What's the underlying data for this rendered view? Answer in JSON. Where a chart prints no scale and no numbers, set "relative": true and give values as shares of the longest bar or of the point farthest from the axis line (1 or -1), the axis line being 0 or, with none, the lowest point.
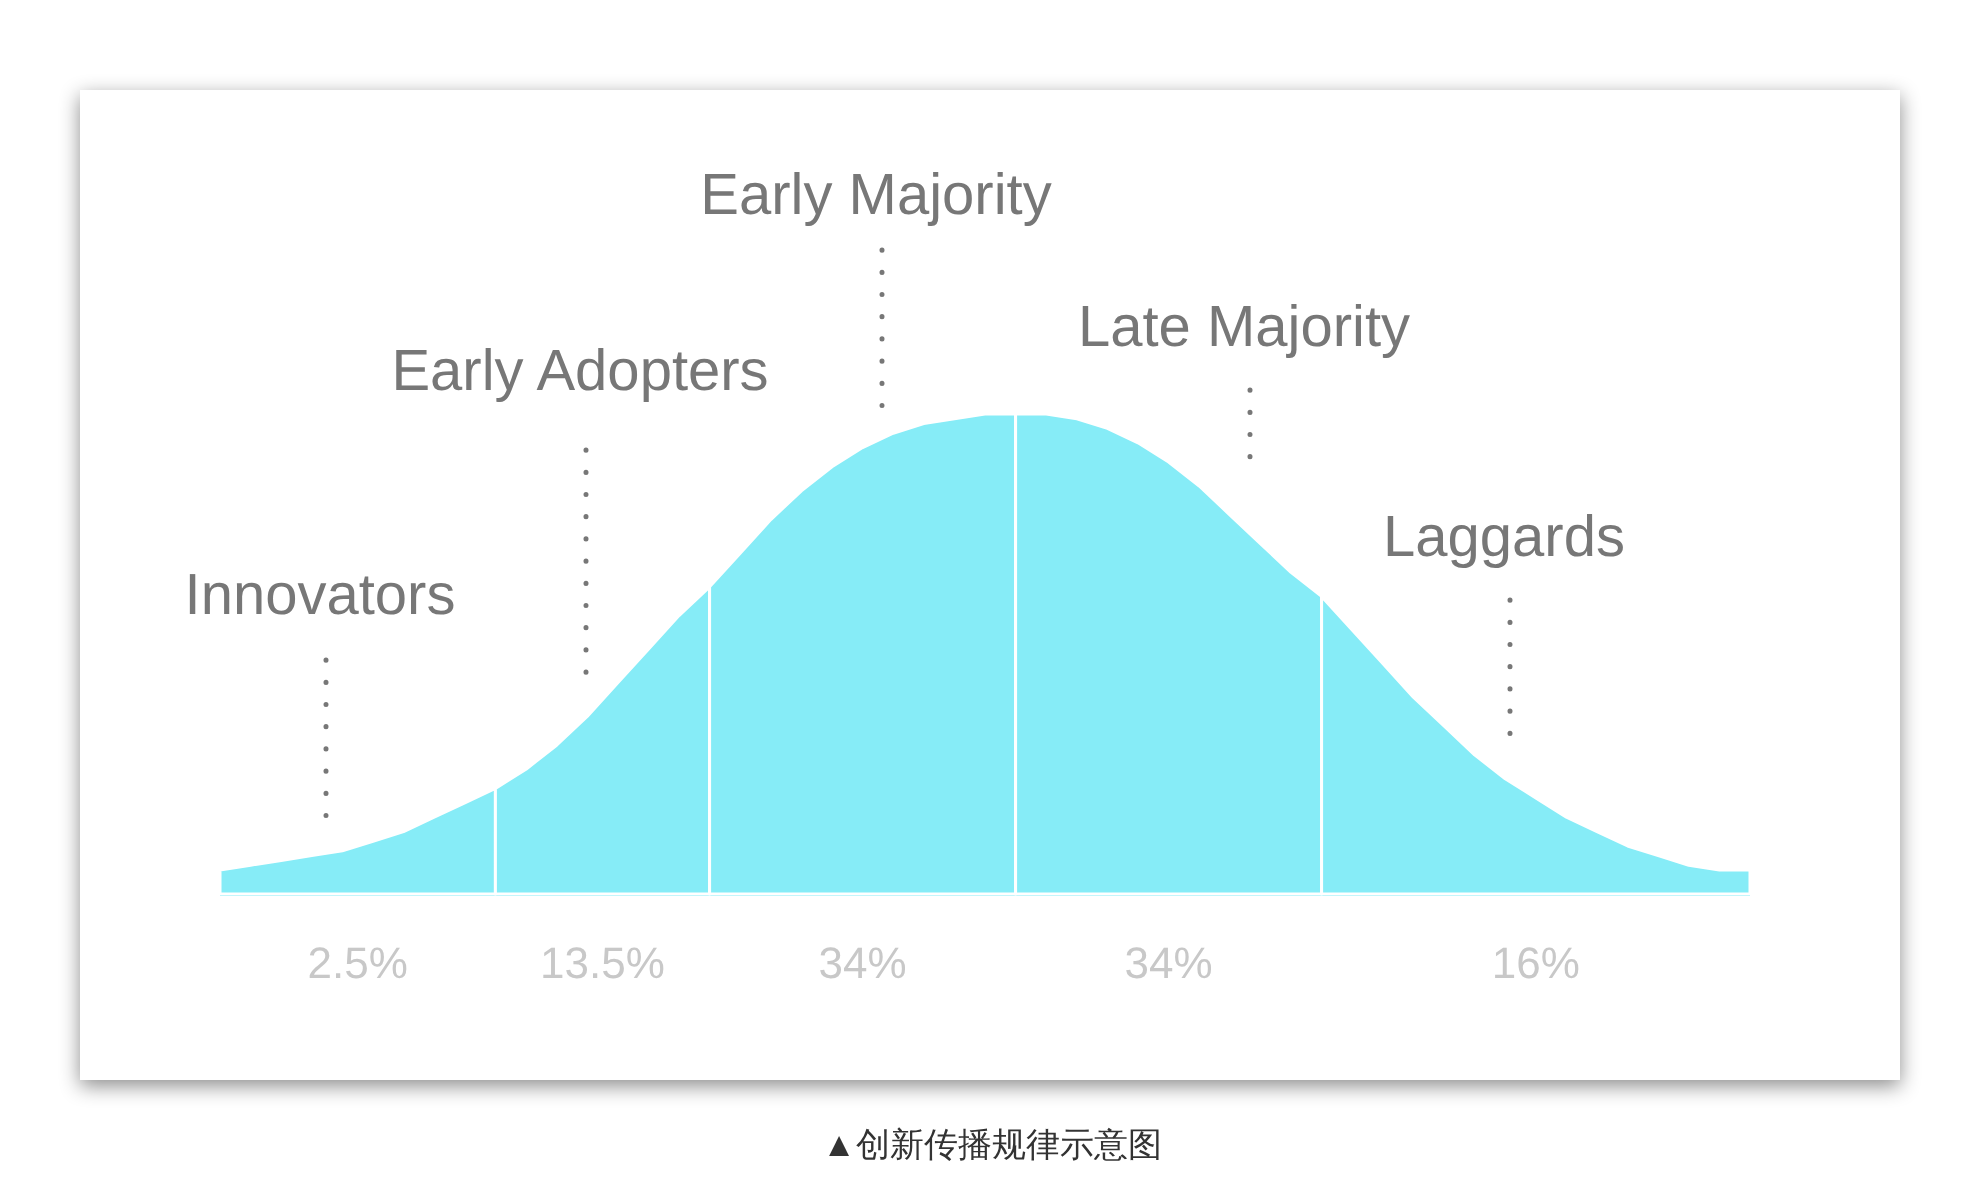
{
  "chart_data": {
    "type": "area",
    "relative": true,
    "categories": [
      null,
      null,
      null,
      null,
      null,
      null,
      null,
      null,
      null,
      null,
      null,
      null,
      null,
      null,
      null,
      null,
      null,
      null,
      null,
      null,
      null,
      null,
      null,
      null,
      null,
      null,
      null,
      null,
      null,
      null,
      null,
      null,
      null,
      null,
      null,
      null,
      null,
      null,
      null,
      null,
      null,
      null,
      null,
      null,
      null,
      null,
      null,
      null,
      null,
      null,
      null
    ],
    "series": [
      {
        "name": "Innovators",
        "color": "#86ecf7",
        "values": [
          0.05,
          0.06,
          0.07,
          0.08,
          0.09,
          0.11,
          0.13,
          0.16,
          0.19,
          0.22,
          null,
          null,
          null,
          null,
          null,
          null,
          null,
          null,
          null,
          null,
          null,
          null,
          null,
          null,
          null,
          null,
          null,
          null,
          null,
          null,
          null,
          null,
          null,
          null,
          null,
          null,
          null,
          null,
          null,
          null,
          null,
          null,
          null,
          null,
          null,
          null,
          null,
          null,
          null,
          null,
          null
        ]
      },
      {
        "name": "Early Adopters",
        "color": "#86ecf7",
        "values": [
          null,
          null,
          null,
          null,
          null,
          null,
          null,
          null,
          null,
          0.22,
          0.26,
          0.31,
          0.37,
          0.44,
          0.51,
          0.58,
          0.64,
          null,
          null,
          null,
          null,
          null,
          null,
          null,
          null,
          null,
          null,
          null,
          null,
          null,
          null,
          null,
          null,
          null,
          null,
          null,
          null,
          null,
          null,
          null,
          null,
          null,
          null,
          null,
          null,
          null,
          null,
          null,
          null,
          null,
          null
        ]
      },
      {
        "name": "Early Majority",
        "color": "#86ecf7",
        "values": [
          null,
          null,
          null,
          null,
          null,
          null,
          null,
          null,
          null,
          null,
          null,
          null,
          null,
          null,
          null,
          null,
          0.64,
          0.71,
          0.78,
          0.84,
          0.89,
          0.93,
          0.96,
          0.98,
          0.99,
          1.0,
          1.0,
          null,
          null,
          null,
          null,
          null,
          null,
          null,
          null,
          null,
          null,
          null,
          null,
          null,
          null,
          null,
          null,
          null,
          null,
          null,
          null,
          null,
          null,
          null,
          null
        ]
      },
      {
        "name": "Late Majority",
        "color": "#86ecf7",
        "values": [
          null,
          null,
          null,
          null,
          null,
          null,
          null,
          null,
          null,
          null,
          null,
          null,
          null,
          null,
          null,
          null,
          null,
          null,
          null,
          null,
          null,
          null,
          null,
          null,
          null,
          null,
          1.0,
          1.0,
          0.99,
          0.97,
          0.94,
          0.9,
          0.85,
          0.79,
          0.73,
          0.67,
          0.62,
          null,
          null,
          null,
          null,
          null,
          null,
          null,
          null,
          null,
          null,
          null,
          null,
          null,
          null
        ]
      },
      {
        "name": "Laggards",
        "color": "#86ecf7",
        "values": [
          null,
          null,
          null,
          null,
          null,
          null,
          null,
          null,
          null,
          null,
          null,
          null,
          null,
          null,
          null,
          null,
          null,
          null,
          null,
          null,
          null,
          null,
          null,
          null,
          null,
          null,
          null,
          null,
          null,
          null,
          null,
          null,
          null,
          null,
          null,
          null,
          0.62,
          0.55,
          0.48,
          0.41,
          0.35,
          0.29,
          0.24,
          0.2,
          0.16,
          0.13,
          0.1,
          0.08,
          0.06,
          0.05,
          0.05
        ]
      }
    ],
    "annotations": [
      "2.5%",
      "13.5%",
      "34%",
      "34%",
      "16%",
      "▲创新传播规律示意图"
    ]
  }
}
